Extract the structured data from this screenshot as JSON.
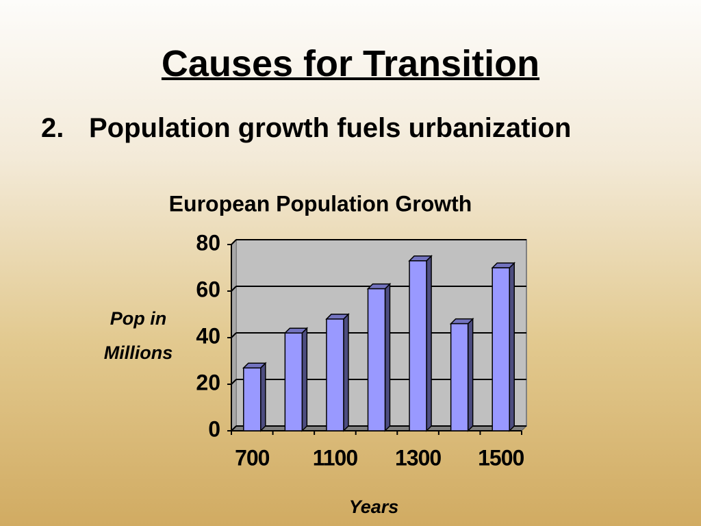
{
  "title": "Causes for Transition",
  "bullet": {
    "number": "2.",
    "text": "Population growth fuels urbanization"
  },
  "chart_data": {
    "type": "bar",
    "title": "European Population Growth",
    "x_label": "Years",
    "y_label": "Pop in Millions",
    "categories": [
      "700",
      null,
      "1100",
      null,
      "1300",
      null,
      "1500"
    ],
    "values": [
      27,
      42,
      48,
      61,
      73,
      46,
      70
    ],
    "color": "#9999ff",
    "ylim": [
      0,
      80
    ],
    "yticks": [
      0,
      20,
      40,
      60,
      80
    ],
    "grid": true
  }
}
